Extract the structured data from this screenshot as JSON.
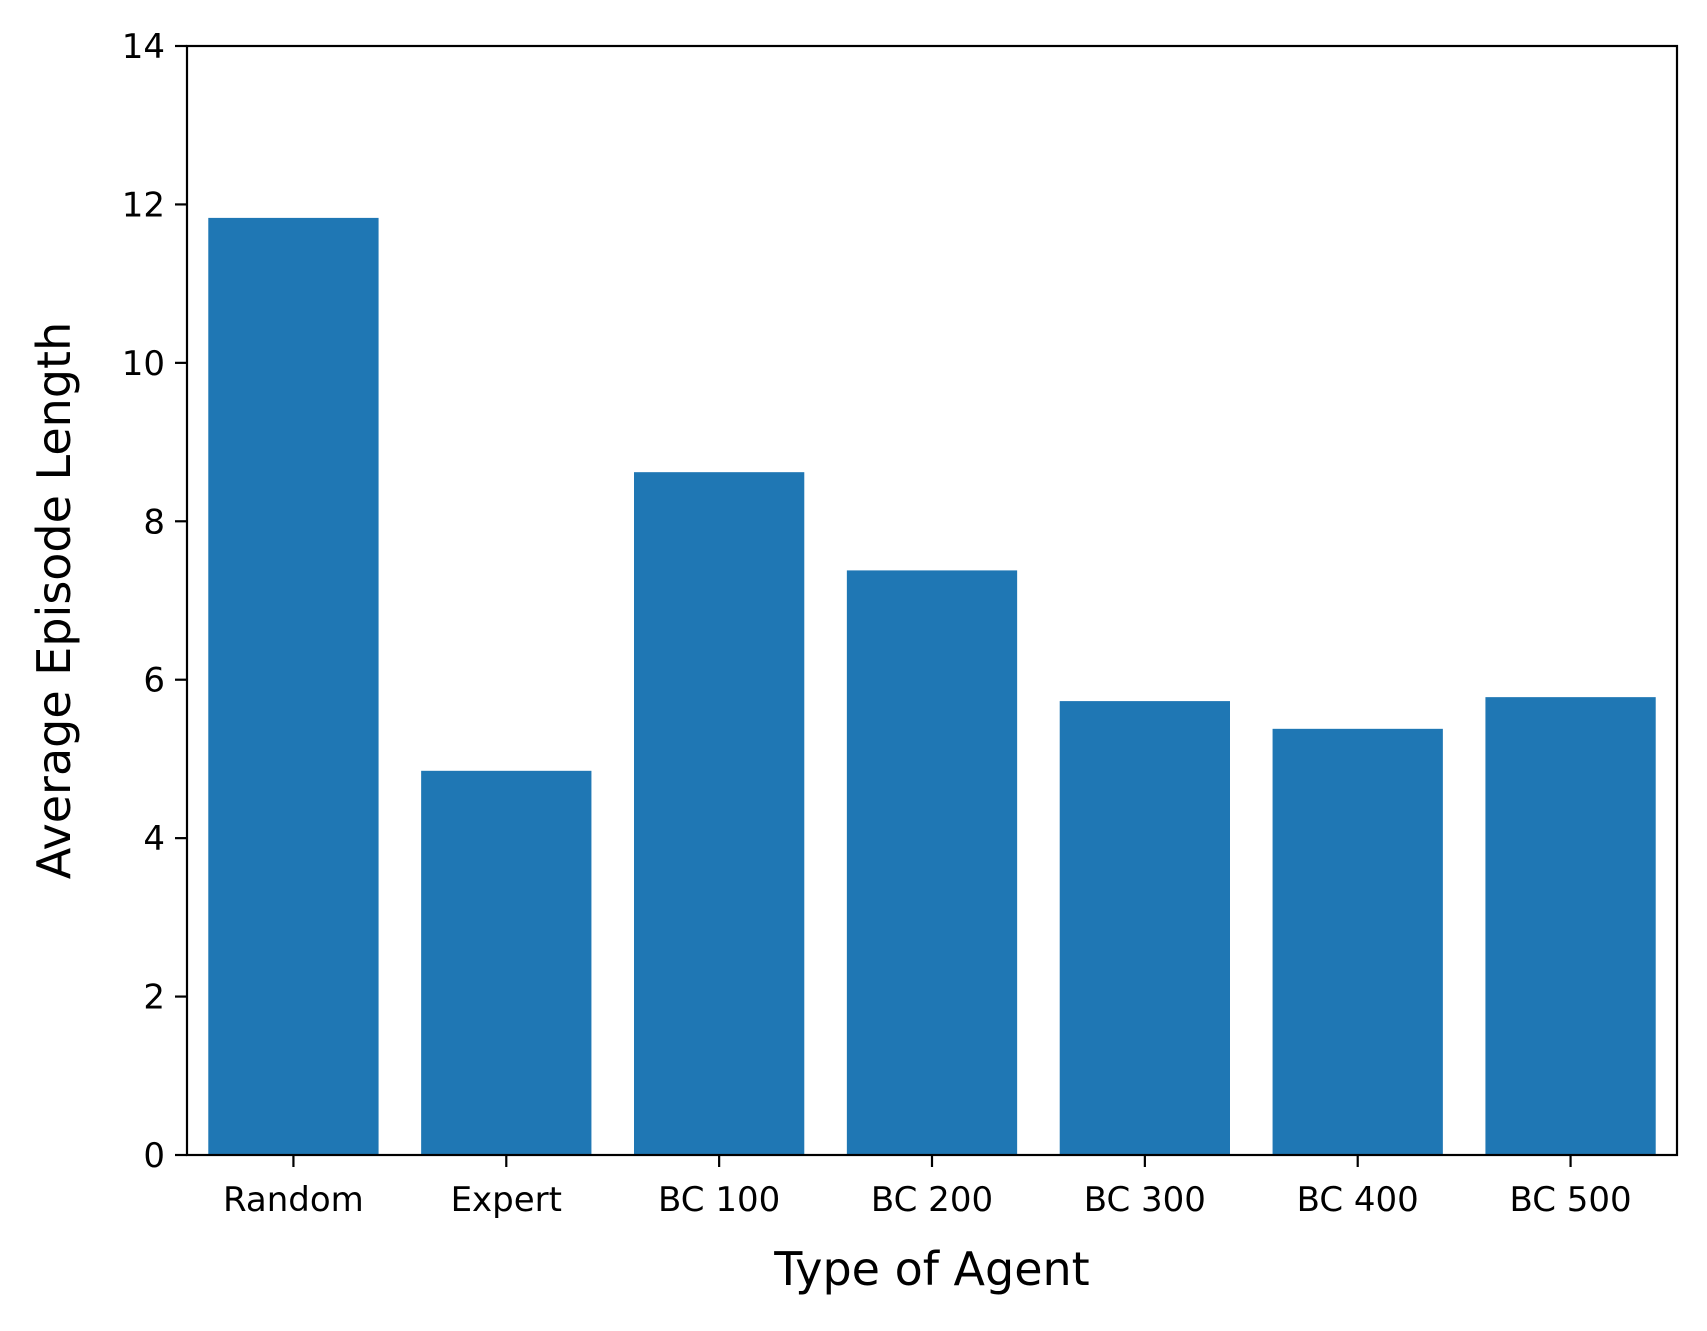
{
  "chart_data": {
    "type": "bar",
    "title": "",
    "xlabel": "Type of Agent",
    "ylabel": "Average Episode Length",
    "categories": [
      "Random",
      "Expert",
      "BC 100",
      "BC 200",
      "BC 300",
      "BC 400",
      "BC 500"
    ],
    "values": [
      11.83,
      4.85,
      8.62,
      7.38,
      5.73,
      5.38,
      5.78
    ],
    "ylim": [
      0,
      14
    ],
    "yticks": [
      0,
      2,
      4,
      6,
      8,
      10,
      12,
      14
    ],
    "grid": false,
    "legend": "none",
    "bar_color": "#1f77b4"
  }
}
